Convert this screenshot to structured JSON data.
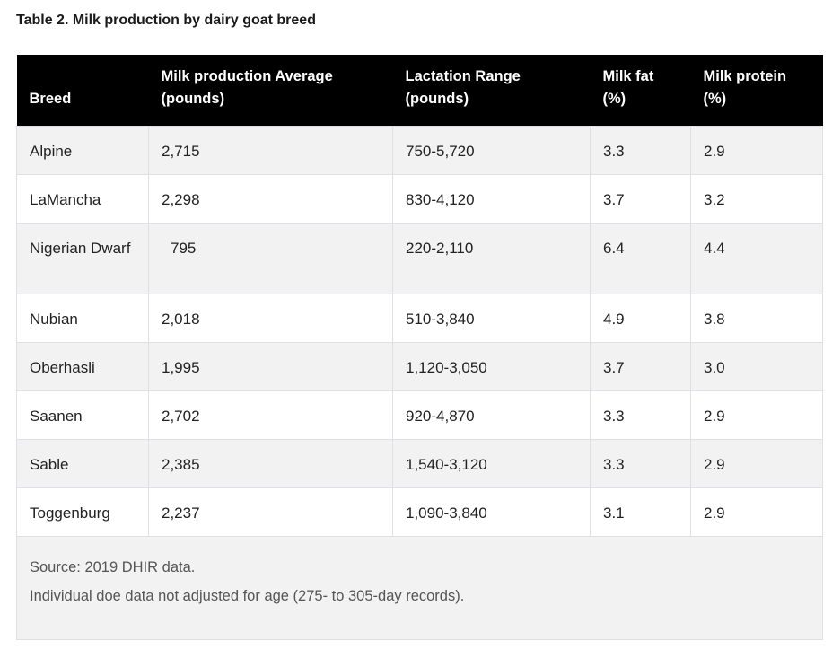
{
  "caption": "Table 2. Milk production by dairy goat breed",
  "headers": [
    "Breed",
    "Milk production Average (pounds)",
    "Lactation Range (pounds)",
    "Milk fat (%)",
    "Milk protein (%)"
  ],
  "headers_lines": [
    [
      "Breed"
    ],
    [
      "Milk production Average",
      "(pounds)"
    ],
    [
      "Lactation Range",
      "(pounds)"
    ],
    [
      "Milk fat",
      "(%)"
    ],
    [
      "Milk protein",
      "(%)"
    ]
  ],
  "rows": [
    [
      "Alpine",
      "2,715",
      "750-5,720",
      "3.3",
      "2.9"
    ],
    [
      "LaMancha",
      "2,298",
      "830-4,120",
      "3.7",
      "3.2"
    ],
    [
      "Nigerian Dwarf",
      "795",
      "220-2,110",
      "6.4",
      "4.4"
    ],
    [
      "Nubian",
      "2,018",
      "510-3,840",
      "4.9",
      "3.8"
    ],
    [
      "Oberhasli",
      "1,995",
      "1,120-3,050",
      "3.7",
      "3.0"
    ],
    [
      "Saanen",
      "2,702",
      "920-4,870",
      "3.3",
      "2.9"
    ],
    [
      "Sable",
      "2,385",
      "1,540-3,120",
      "3.3",
      "2.9"
    ],
    [
      "Toggenburg",
      "2,237",
      "1,090-3,840",
      "3.1",
      "2.9"
    ]
  ],
  "footnotes": [
    "Source: 2019 DHIR data.",
    "Individual doe data not adjusted for age (275- to 305-day records)."
  ]
}
